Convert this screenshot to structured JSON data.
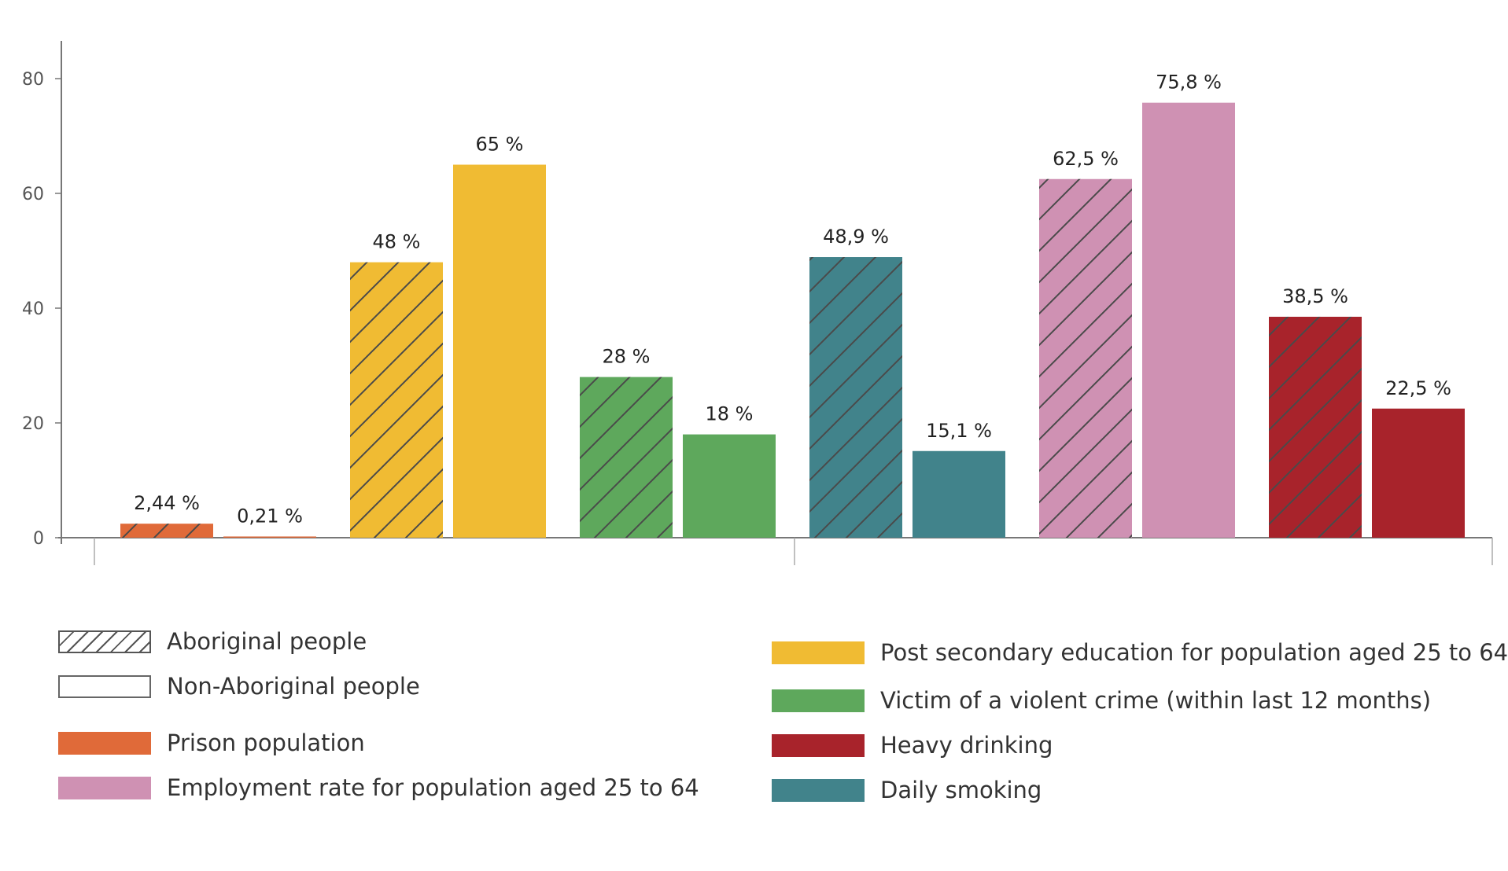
{
  "chart_data": {
    "type": "bar",
    "categories": [
      "Prison population",
      "Post secondary education for population aged 25 to 64",
      "Victim of a violent crime (within last 12 months)",
      "Daily smoking",
      "Employment rate for population aged 25 to 64",
      "Heavy drinking"
    ],
    "series": [
      {
        "name": "Aboriginal people",
        "pattern": "hatched",
        "values": [
          2.44,
          48,
          28,
          48.9,
          62.5,
          38.5
        ],
        "labels": [
          "2,44 %",
          "48 %",
          "28 %",
          "48,9 %",
          "62,5 %",
          "38,5 %"
        ]
      },
      {
        "name": "Non-Aboriginal people",
        "pattern": "solid",
        "values": [
          0.21,
          65,
          18,
          15.1,
          75.8,
          22.5
        ],
        "labels": [
          "0,21 %",
          "65 %",
          "18 %",
          "15,1 %",
          "75,8 %",
          "22,5 %"
        ]
      }
    ],
    "category_colors": [
      "#e06a39",
      "#f0bb33",
      "#5ea85c",
      "#41838b",
      "#cf91b3",
      "#a8232b"
    ],
    "y_ticks": [
      "0",
      "20",
      "40",
      "60",
      "80"
    ],
    "ylim": [
      0,
      88
    ],
    "grid": false,
    "legend_position": "bottom"
  },
  "legend": {
    "aboriginal": "Aboriginal people",
    "non_aboriginal": "Non-Aboriginal people",
    "prison": "Prison population",
    "employment": "Employment rate for population aged 25 to 64",
    "education": "Post secondary education for population aged 25 to 64",
    "violent": "Victim of a violent crime (within last 12 months)",
    "drinking": "Heavy drinking",
    "smoking": "Daily smoking"
  }
}
